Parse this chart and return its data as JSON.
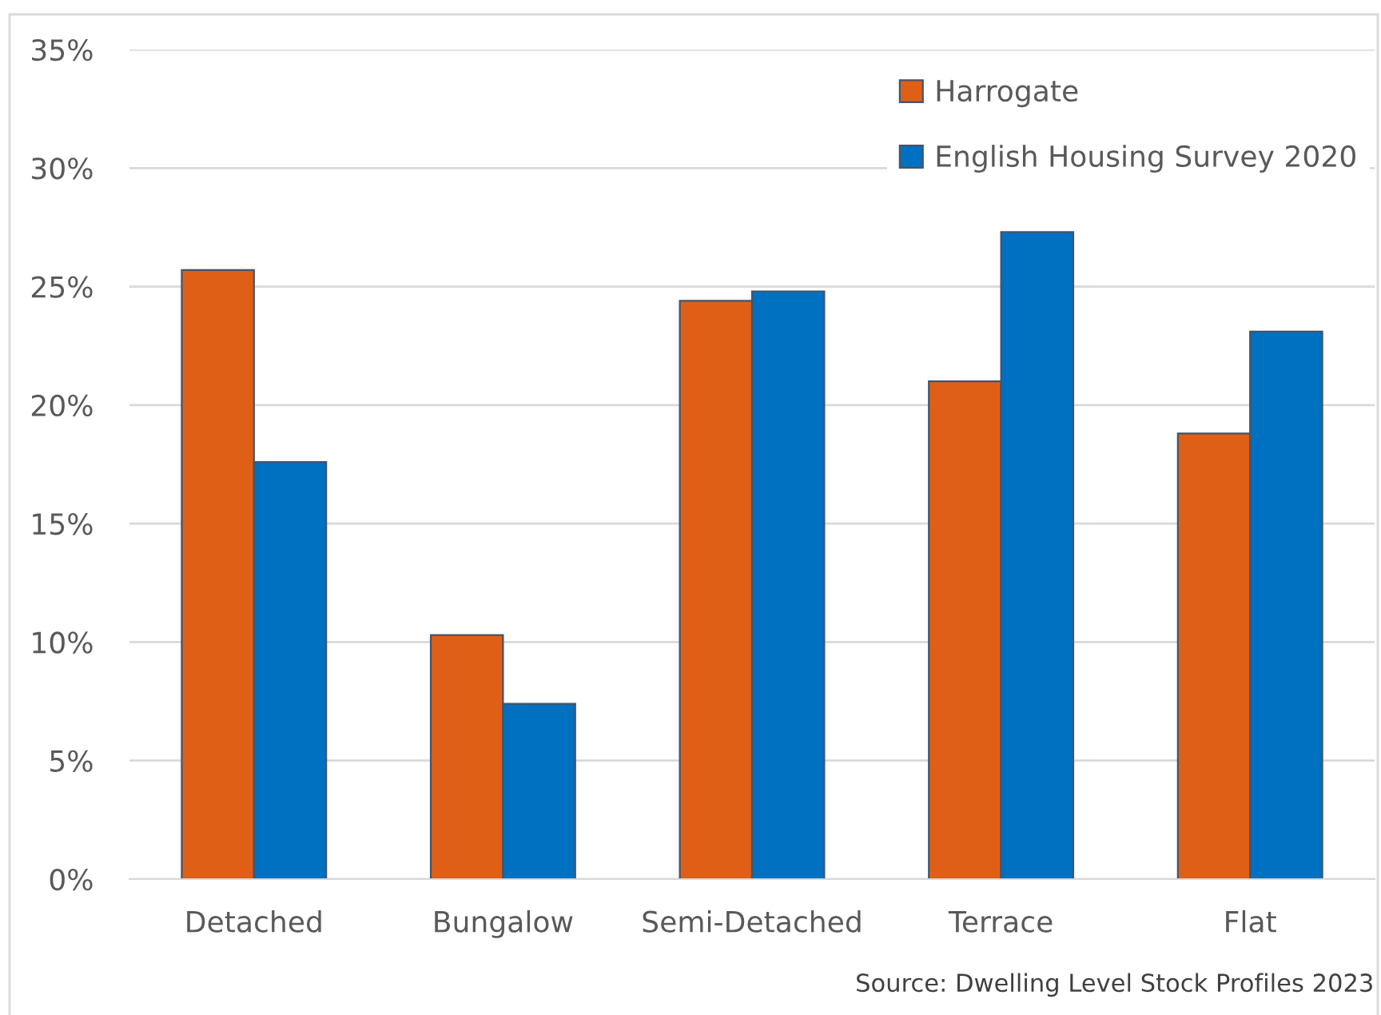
{
  "chart_data": {
    "type": "bar",
    "categories": [
      "Detached",
      "Bungalow",
      "Semi-Detached",
      "Terrace",
      "Flat"
    ],
    "series": [
      {
        "name": "Harrogate",
        "color": "#e05f17",
        "values": [
          25.7,
          10.3,
          24.4,
          21.0,
          18.8
        ]
      },
      {
        "name": "English Housing Survey 2020",
        "color": "#0070c0",
        "values": [
          17.6,
          7.4,
          24.8,
          27.3,
          23.1
        ]
      }
    ],
    "ylim": [
      0,
      35
    ],
    "yticks": [
      {
        "value": 0,
        "label": "0%"
      },
      {
        "value": 5,
        "label": "5%"
      },
      {
        "value": 10,
        "label": "10%"
      },
      {
        "value": 15,
        "label": "15%"
      },
      {
        "value": 20,
        "label": "20%"
      },
      {
        "value": 25,
        "label": "25%"
      },
      {
        "value": 30,
        "label": "30%"
      },
      {
        "value": 35,
        "label": "35%"
      }
    ],
    "grid": "y",
    "legend": "top right",
    "annotations": [
      "Source: Dwelling Level Stock Profiles 2023"
    ]
  }
}
